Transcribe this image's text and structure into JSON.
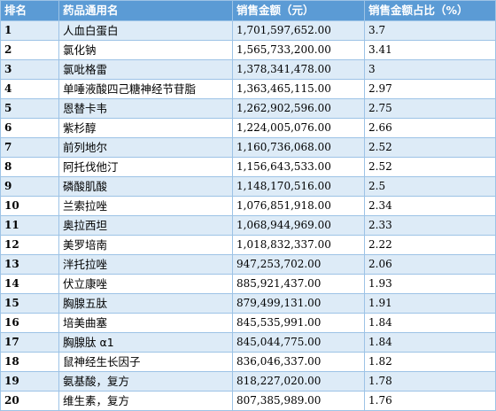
{
  "headers": [
    "排名",
    "药品通用名",
    "销售金额（元）",
    "销售金额占比（%）"
  ],
  "rows": [
    {
      "rank": "1",
      "name": "人血白蛋白",
      "amount": "1,701,597,652.00",
      "share": "3.7"
    },
    {
      "rank": "2",
      "name": "氯化钠",
      "amount": "1,565,733,200.00",
      "share": "3.41"
    },
    {
      "rank": "3",
      "name": "氯吡格雷",
      "amount": "1,378,341,478.00",
      "share": "3"
    },
    {
      "rank": "4",
      "name": "单唾液酸四己糖神经节苷脂",
      "amount": "1,363,465,115.00",
      "share": "2.97"
    },
    {
      "rank": "5",
      "name": "恩替卡韦",
      "amount": "1,262,902,596.00",
      "share": "2.75"
    },
    {
      "rank": "6",
      "name": "紫杉醇",
      "amount": "1,224,005,076.00",
      "share": "2.66"
    },
    {
      "rank": "7",
      "name": "前列地尔",
      "amount": "1,160,736,068.00",
      "share": "2.52"
    },
    {
      "rank": "8",
      "name": "阿托伐他汀",
      "amount": "1,156,643,533.00",
      "share": "2.52"
    },
    {
      "rank": "9",
      "name": "磷酸肌酸",
      "amount": "1,148,170,516.00",
      "share": "2.5"
    },
    {
      "rank": "10",
      "name": "兰索拉唑",
      "amount": "1,076,851,918.00",
      "share": "2.34"
    },
    {
      "rank": "11",
      "name": "奥拉西坦",
      "amount": "1,068,944,969.00",
      "share": "2.33"
    },
    {
      "rank": "12",
      "name": "美罗培南",
      "amount": "1,018,832,337.00",
      "share": "2.22"
    },
    {
      "rank": "13",
      "name": "泮托拉唑",
      "amount": "947,253,702.00",
      "share": "2.06"
    },
    {
      "rank": "14",
      "name": "伏立康唑",
      "amount": "885,921,437.00",
      "share": "1.93"
    },
    {
      "rank": "15",
      "name": "胸腺五肽",
      "amount": "879,499,131.00",
      "share": "1.91"
    },
    {
      "rank": "16",
      "name": "培美曲塞",
      "amount": "845,535,991.00",
      "share": "1.84"
    },
    {
      "rank": "17",
      "name": "胸腺肽 α1",
      "amount": "845,044,775.00",
      "share": "1.84"
    },
    {
      "rank": "18",
      "name": "鼠神经生长因子",
      "amount": "836,046,337.00",
      "share": "1.82"
    },
    {
      "rank": "19",
      "name": "氨基酸，复方",
      "amount": "818,227,020.00",
      "share": "1.78"
    },
    {
      "rank": "20",
      "name": "维生素，复方",
      "amount": "807,385,989.00",
      "share": "1.76"
    }
  ],
  "colors": {
    "header_bg": "#5b9bd5",
    "header_text": "#ffffff",
    "band_odd": "#ddebf7",
    "band_even": "#ffffff",
    "border": "#9dc3e6"
  }
}
